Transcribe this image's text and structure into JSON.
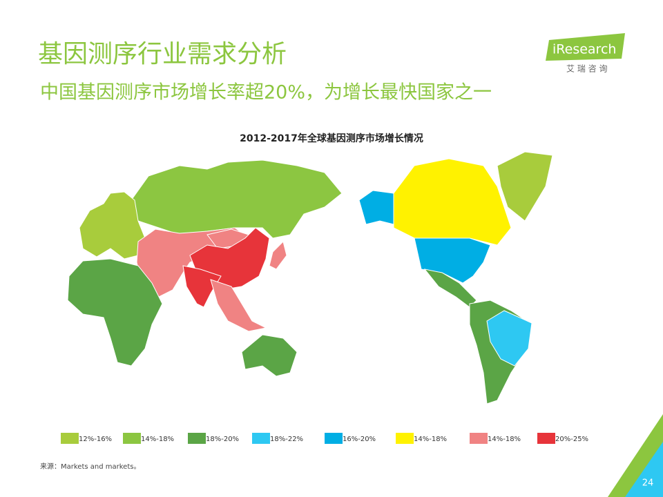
{
  "header": {
    "title": "基因测序行业需求分析",
    "subtitle": "中国基因测序市场增长率超20%，为增长最快国家之一"
  },
  "logo": {
    "name": "iResearch",
    "tagline": "艾 瑞 咨 询"
  },
  "map": {
    "title": "2012-2017年全球基因测序市场增长情况",
    "legend": [
      {
        "label": "12%-16%",
        "color": "#a8cc3c"
      },
      {
        "label": "14%-18%",
        "color": "#8cc641"
      },
      {
        "label": "18%-20%",
        "color": "#5ba546"
      },
      {
        "label": "18%-22%",
        "color": "#2ec8f2"
      },
      {
        "label": "16%-20%",
        "color": "#00aee4"
      },
      {
        "label": "14%-18%",
        "color": "#fff200"
      },
      {
        "label": "14%-18%",
        "color": "#f08383"
      },
      {
        "label": "20%-25%",
        "color": "#e7343a"
      }
    ]
  },
  "source": "来源：Markets and markets。",
  "page_number": "24"
}
